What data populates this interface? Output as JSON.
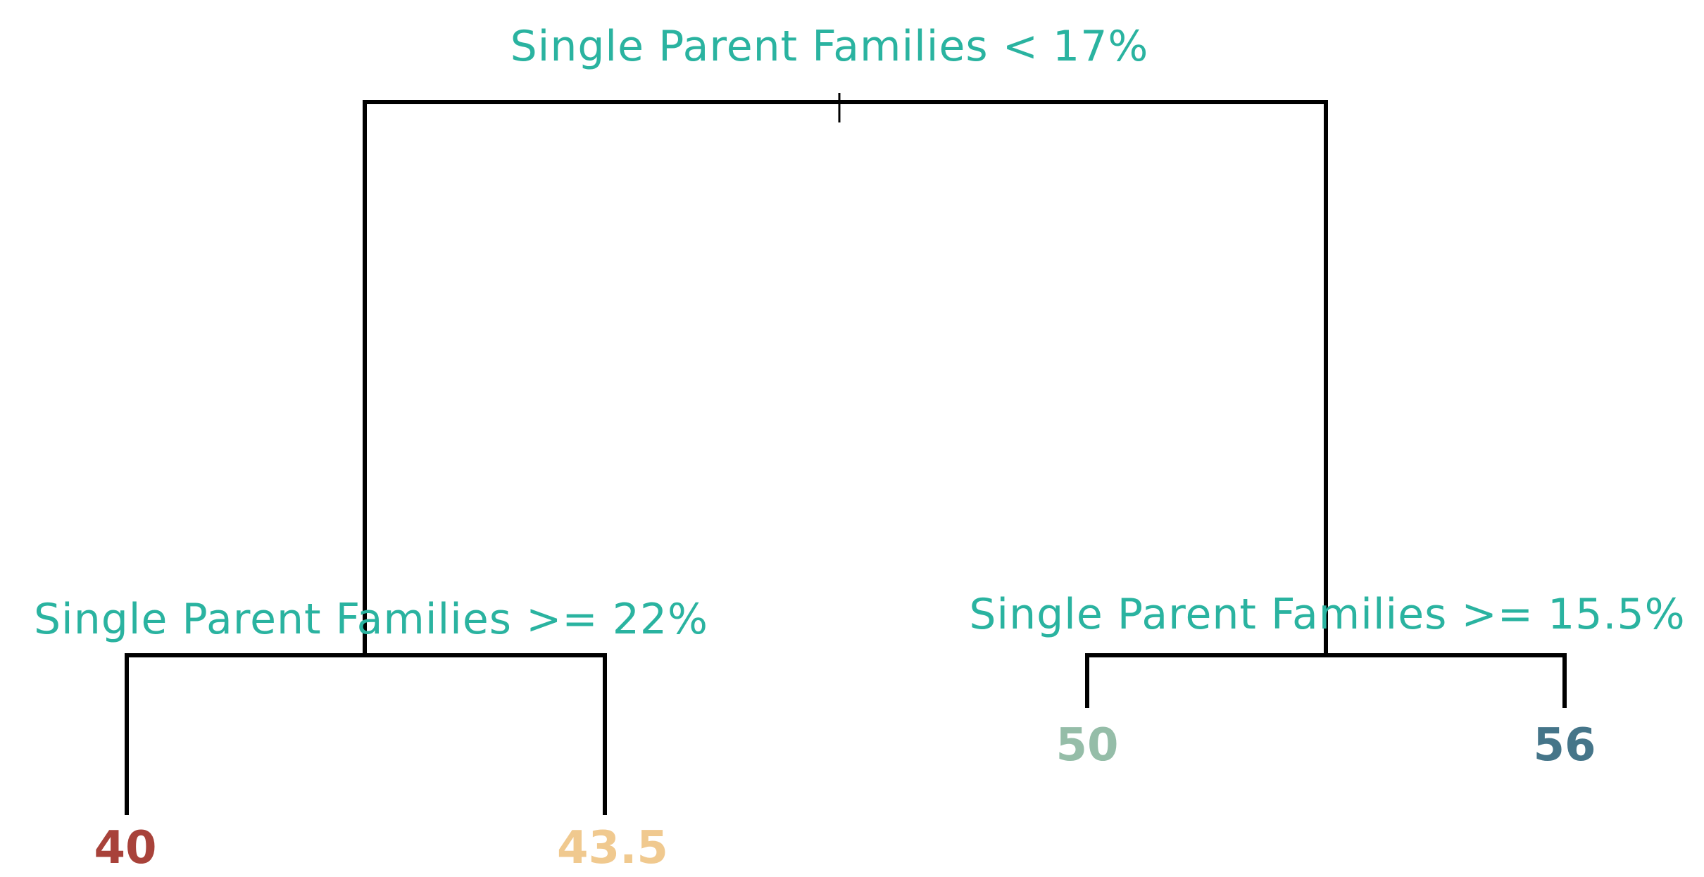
{
  "tree": {
    "root": {
      "label": "Single Parent Families < 17%"
    },
    "left_split": {
      "label": "Single Parent Families >= 22%"
    },
    "right_split": {
      "label": "Single Parent Families >= 15.5%"
    },
    "leaves": [
      {
        "label": "40",
        "color": "#a8423a"
      },
      {
        "label": "43.5",
        "color": "#f0c98f"
      },
      {
        "label": "50",
        "color": "#95bda8"
      },
      {
        "label": "56",
        "color": "#457589"
      }
    ]
  },
  "colors": {
    "split_label": "#2ab3a0",
    "edges": "#000000"
  }
}
